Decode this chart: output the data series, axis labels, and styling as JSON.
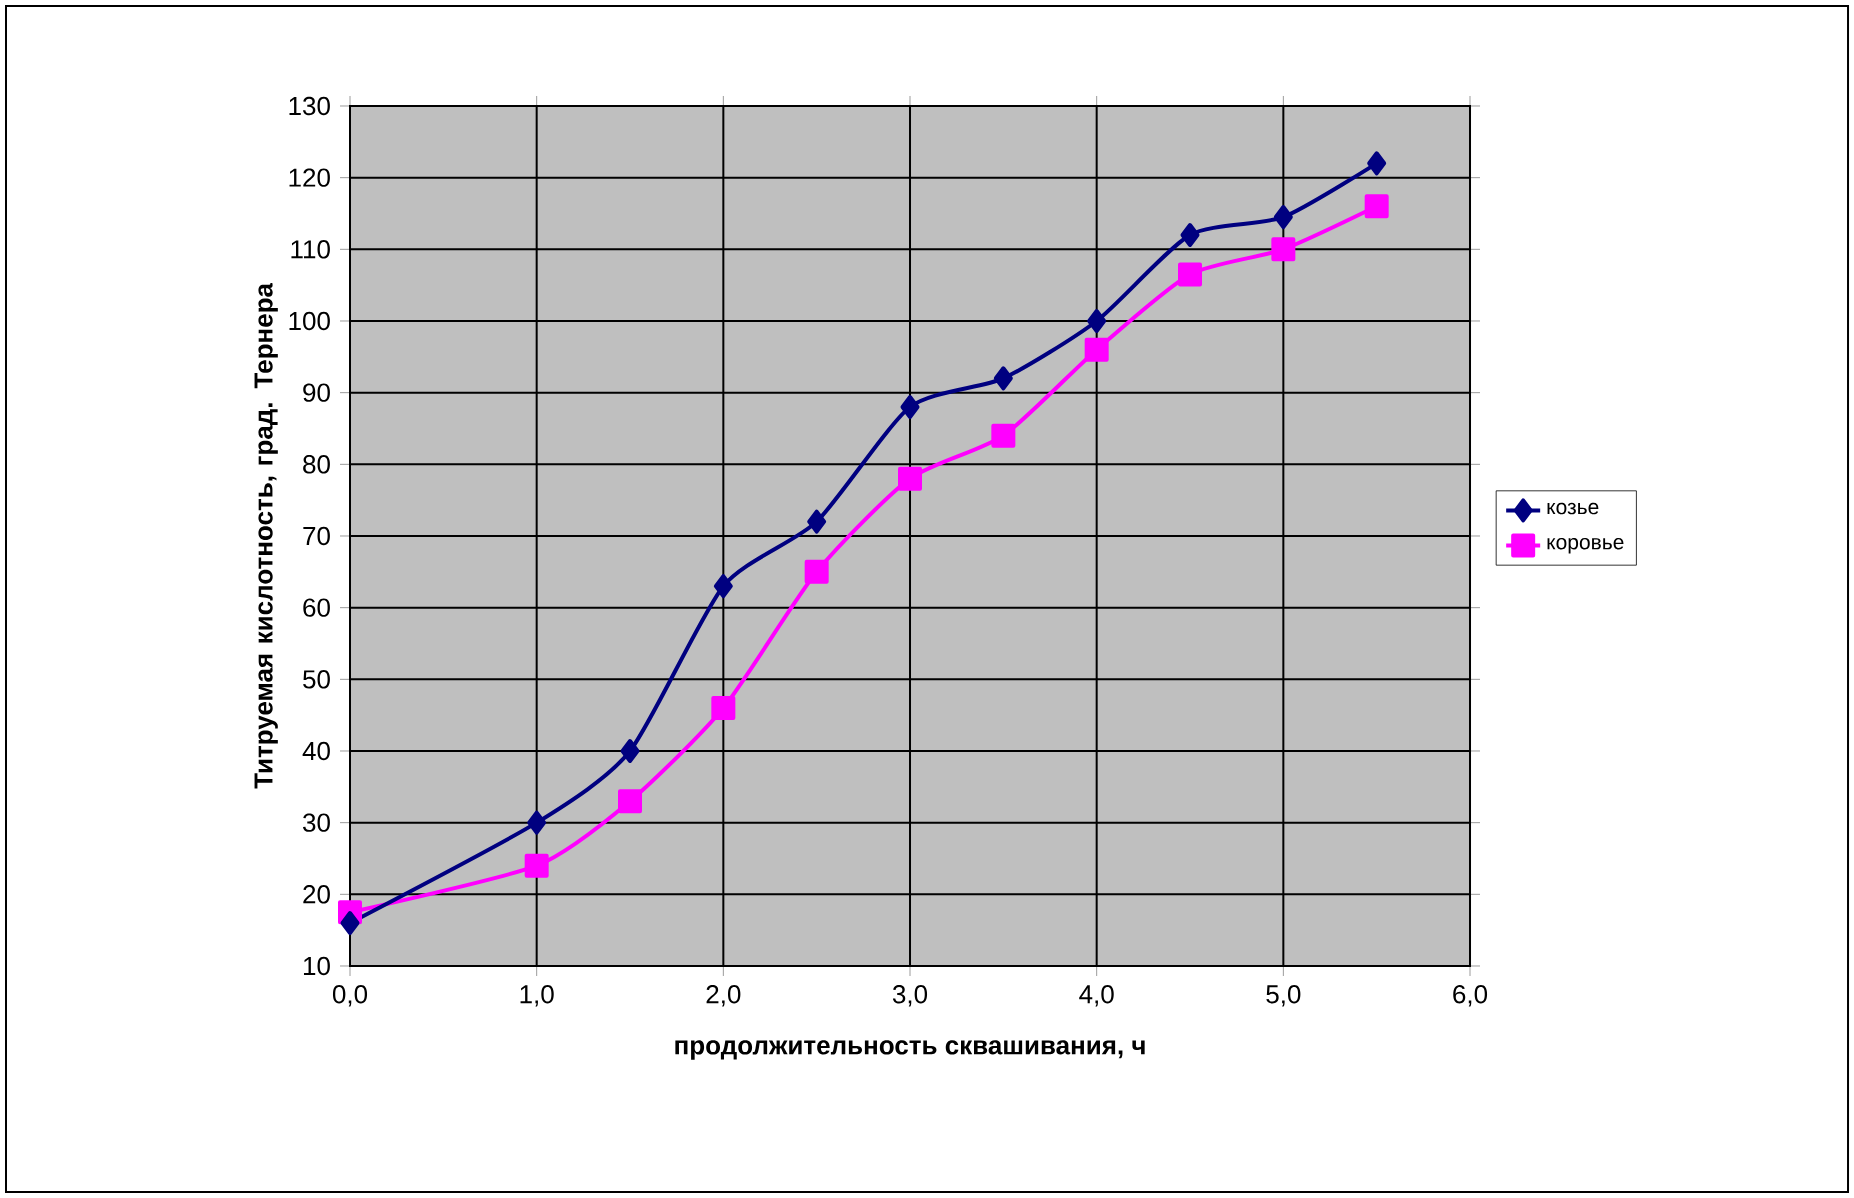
{
  "chart_data": {
    "type": "line",
    "xlabel": "продолжительность сквашивания, ч",
    "ylabel": "Титруемая кислотность, град. Тернера",
    "xlim": [
      0,
      6
    ],
    "xticks": [
      {
        "value": 0,
        "label": "0,0"
      },
      {
        "value": 1,
        "label": "1,0"
      },
      {
        "value": 2,
        "label": "2,0"
      },
      {
        "value": 3,
        "label": "3,0"
      },
      {
        "value": 4,
        "label": "4,0"
      },
      {
        "value": 5,
        "label": "5,0"
      },
      {
        "value": 6,
        "label": "6,0"
      }
    ],
    "ylim": [
      10,
      130
    ],
    "yticks": [
      10,
      20,
      30,
      40,
      50,
      60,
      70,
      80,
      90,
      100,
      110,
      120,
      130
    ],
    "grid": true,
    "legend": "right",
    "line_style": "solid",
    "x": [
      0,
      1,
      1.5,
      2,
      2.5,
      3,
      3.5,
      4,
      4.5,
      5,
      5.5
    ],
    "series": [
      {
        "name": "козье",
        "color": "#000080",
        "marker": "diamond",
        "values": [
          16,
          30,
          40,
          63,
          72,
          88,
          92,
          100,
          112,
          114.5,
          122
        ]
      },
      {
        "name": "коровье",
        "color": "#ff00ff",
        "marker": "square",
        "values": [
          17.5,
          24,
          33,
          46,
          65,
          78,
          84,
          96,
          106.5,
          110,
          116
        ]
      }
    ]
  }
}
